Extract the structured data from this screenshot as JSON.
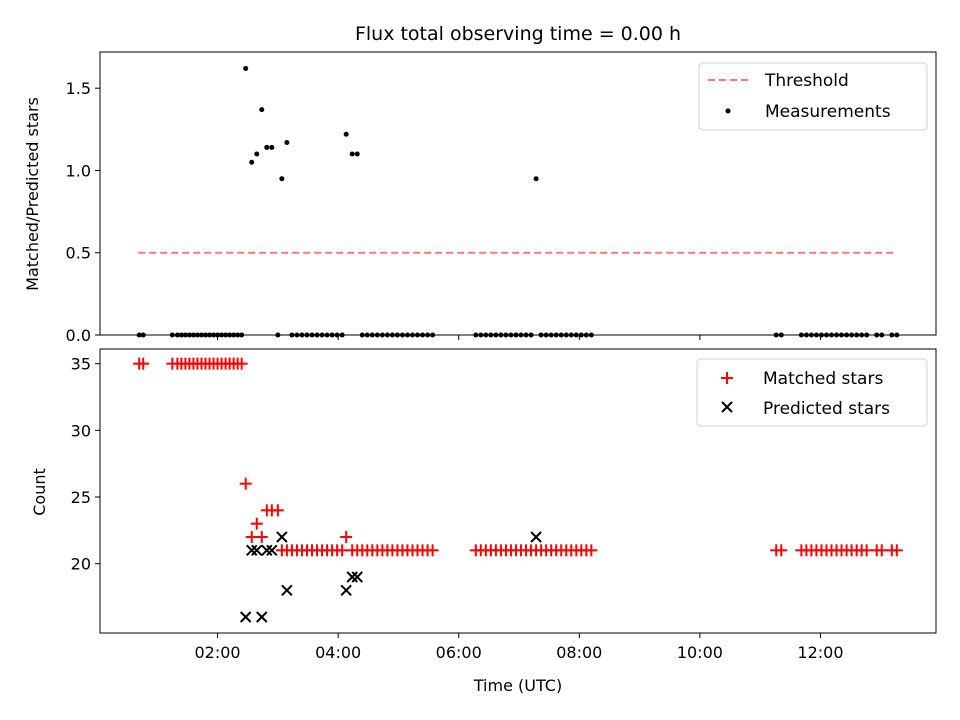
{
  "figure_title": "Flux total observing time = 0.00 h",
  "xlabel": "Time (UTC)",
  "chart_data": [
    {
      "type": "scatter",
      "title": "Flux total observing time = 0.00 h",
      "ylabel": "Matched/Predicted stars",
      "xlim": [
        "00:03",
        "13:55"
      ],
      "ylim": [
        0,
        1.72
      ],
      "yticks": [
        "0.0",
        "0.5",
        "1.0",
        "1.5"
      ],
      "xticks": [
        "02:00",
        "04:00",
        "06:00",
        "08:00",
        "10:00",
        "12:00"
      ],
      "legend_position": "top-right",
      "threshold": {
        "name": "Threshold",
        "value": 0.5,
        "color": "#ff7777",
        "from": "00:41",
        "to": "13:15"
      },
      "series": [
        {
          "name": "Measurements",
          "color": "#000000",
          "points": [
            [
              "00:42",
              0
            ],
            [
              "00:46",
              0
            ],
            [
              "01:15",
              0
            ],
            [
              "01:20",
              0
            ],
            [
              "01:24",
              0
            ],
            [
              "01:28",
              0
            ],
            [
              "01:32",
              0
            ],
            [
              "01:36",
              0
            ],
            [
              "01:40",
              0
            ],
            [
              "01:44",
              0
            ],
            [
              "01:48",
              0
            ],
            [
              "01:52",
              0
            ],
            [
              "01:56",
              0
            ],
            [
              "02:00",
              0
            ],
            [
              "02:04",
              0
            ],
            [
              "02:08",
              0
            ],
            [
              "02:12",
              0
            ],
            [
              "02:16",
              0
            ],
            [
              "02:20",
              0
            ],
            [
              "02:24",
              0
            ],
            [
              "02:28",
              1.62
            ],
            [
              "02:34",
              1.05
            ],
            [
              "02:39",
              1.1
            ],
            [
              "02:44",
              1.37
            ],
            [
              "02:49",
              1.14
            ],
            [
              "02:54",
              1.14
            ],
            [
              "03:00",
              0
            ],
            [
              "03:04",
              0.95
            ],
            [
              "03:09",
              1.17
            ],
            [
              "03:14",
              0
            ],
            [
              "03:19",
              0
            ],
            [
              "03:24",
              0
            ],
            [
              "03:29",
              0
            ],
            [
              "03:34",
              0
            ],
            [
              "03:39",
              0
            ],
            [
              "03:44",
              0
            ],
            [
              "03:49",
              0
            ],
            [
              "03:54",
              0
            ],
            [
              "03:59",
              0
            ],
            [
              "04:04",
              0
            ],
            [
              "04:08",
              1.22
            ],
            [
              "04:14",
              1.1
            ],
            [
              "04:19",
              1.1
            ],
            [
              "04:24",
              0
            ],
            [
              "04:29",
              0
            ],
            [
              "04:34",
              0
            ],
            [
              "04:39",
              0
            ],
            [
              "04:44",
              0
            ],
            [
              "04:49",
              0
            ],
            [
              "04:54",
              0
            ],
            [
              "04:59",
              0
            ],
            [
              "05:04",
              0
            ],
            [
              "05:09",
              0
            ],
            [
              "05:14",
              0
            ],
            [
              "05:19",
              0
            ],
            [
              "05:24",
              0
            ],
            [
              "05:29",
              0
            ],
            [
              "05:34",
              0
            ],
            [
              "06:17",
              0
            ],
            [
              "06:22",
              0
            ],
            [
              "06:27",
              0
            ],
            [
              "06:32",
              0
            ],
            [
              "06:37",
              0
            ],
            [
              "06:42",
              0
            ],
            [
              "06:47",
              0
            ],
            [
              "06:52",
              0
            ],
            [
              "06:57",
              0
            ],
            [
              "07:02",
              0
            ],
            [
              "07:07",
              0
            ],
            [
              "07:12",
              0
            ],
            [
              "07:17",
              0.95
            ],
            [
              "07:22",
              0
            ],
            [
              "07:27",
              0
            ],
            [
              "07:32",
              0
            ],
            [
              "07:37",
              0
            ],
            [
              "07:42",
              0
            ],
            [
              "07:47",
              0
            ],
            [
              "07:52",
              0
            ],
            [
              "07:57",
              0
            ],
            [
              "08:02",
              0
            ],
            [
              "08:07",
              0
            ],
            [
              "08:12",
              0
            ],
            [
              "11:16",
              0
            ],
            [
              "11:21",
              0
            ],
            [
              "11:41",
              0
            ],
            [
              "11:46",
              0
            ],
            [
              "11:51",
              0
            ],
            [
              "11:56",
              0
            ],
            [
              "12:01",
              0
            ],
            [
              "12:06",
              0
            ],
            [
              "12:11",
              0
            ],
            [
              "12:16",
              0
            ],
            [
              "12:21",
              0
            ],
            [
              "12:26",
              0
            ],
            [
              "12:31",
              0
            ],
            [
              "12:36",
              0
            ],
            [
              "12:41",
              0
            ],
            [
              "12:46",
              0
            ],
            [
              "12:56",
              0
            ],
            [
              "13:01",
              0
            ],
            [
              "13:11",
              0
            ],
            [
              "13:16",
              0
            ]
          ]
        }
      ]
    },
    {
      "type": "scatter",
      "ylabel": "Count",
      "xlabel": "Time (UTC)",
      "xlim": [
        "00:03",
        "13:55"
      ],
      "ylim": [
        14.8,
        36.1
      ],
      "yticks": [
        "20",
        "25",
        "30",
        "35"
      ],
      "xticks": [
        "02:00",
        "04:00",
        "06:00",
        "08:00",
        "10:00",
        "12:00"
      ],
      "legend_position": "top-right",
      "series": [
        {
          "name": "Matched stars",
          "marker": "plus",
          "color": "#ff0000",
          "points": [
            [
              "00:42",
              35
            ],
            [
              "00:46",
              35
            ],
            [
              "01:15",
              35
            ],
            [
              "01:20",
              35
            ],
            [
              "01:24",
              35
            ],
            [
              "01:28",
              35
            ],
            [
              "01:32",
              35
            ],
            [
              "01:36",
              35
            ],
            [
              "01:40",
              35
            ],
            [
              "01:44",
              35
            ],
            [
              "01:48",
              35
            ],
            [
              "01:52",
              35
            ],
            [
              "01:56",
              35
            ],
            [
              "02:00",
              35
            ],
            [
              "02:04",
              35
            ],
            [
              "02:08",
              35
            ],
            [
              "02:12",
              35
            ],
            [
              "02:16",
              35
            ],
            [
              "02:20",
              35
            ],
            [
              "02:24",
              35
            ],
            [
              "02:28",
              26
            ],
            [
              "02:34",
              22
            ],
            [
              "02:39",
              23
            ],
            [
              "02:44",
              22
            ],
            [
              "02:49",
              24
            ],
            [
              "02:54",
              24
            ],
            [
              "03:00",
              24
            ],
            [
              "03:04",
              21
            ],
            [
              "03:09",
              21
            ],
            [
              "03:14",
              21
            ],
            [
              "03:19",
              21
            ],
            [
              "03:24",
              21
            ],
            [
              "03:29",
              21
            ],
            [
              "03:34",
              21
            ],
            [
              "03:39",
              21
            ],
            [
              "03:44",
              21
            ],
            [
              "03:49",
              21
            ],
            [
              "03:54",
              21
            ],
            [
              "03:59",
              21
            ],
            [
              "04:04",
              21
            ],
            [
              "04:08",
              22
            ],
            [
              "04:14",
              21
            ],
            [
              "04:19",
              21
            ],
            [
              "04:24",
              21
            ],
            [
              "04:29",
              21
            ],
            [
              "04:34",
              21
            ],
            [
              "04:39",
              21
            ],
            [
              "04:44",
              21
            ],
            [
              "04:49",
              21
            ],
            [
              "04:54",
              21
            ],
            [
              "04:59",
              21
            ],
            [
              "05:04",
              21
            ],
            [
              "05:09",
              21
            ],
            [
              "05:14",
              21
            ],
            [
              "05:19",
              21
            ],
            [
              "05:24",
              21
            ],
            [
              "05:29",
              21
            ],
            [
              "05:34",
              21
            ],
            [
              "06:17",
              21
            ],
            [
              "06:22",
              21
            ],
            [
              "06:27",
              21
            ],
            [
              "06:32",
              21
            ],
            [
              "06:37",
              21
            ],
            [
              "06:42",
              21
            ],
            [
              "06:47",
              21
            ],
            [
              "06:52",
              21
            ],
            [
              "06:57",
              21
            ],
            [
              "07:02",
              21
            ],
            [
              "07:07",
              21
            ],
            [
              "07:12",
              21
            ],
            [
              "07:17",
              21
            ],
            [
              "07:22",
              21
            ],
            [
              "07:27",
              21
            ],
            [
              "07:32",
              21
            ],
            [
              "07:37",
              21
            ],
            [
              "07:42",
              21
            ],
            [
              "07:47",
              21
            ],
            [
              "07:52",
              21
            ],
            [
              "07:57",
              21
            ],
            [
              "08:02",
              21
            ],
            [
              "08:07",
              21
            ],
            [
              "08:12",
              21
            ],
            [
              "11:16",
              21
            ],
            [
              "11:21",
              21
            ],
            [
              "11:41",
              21
            ],
            [
              "11:46",
              21
            ],
            [
              "11:51",
              21
            ],
            [
              "11:56",
              21
            ],
            [
              "12:01",
              21
            ],
            [
              "12:06",
              21
            ],
            [
              "12:11",
              21
            ],
            [
              "12:16",
              21
            ],
            [
              "12:21",
              21
            ],
            [
              "12:26",
              21
            ],
            [
              "12:31",
              21
            ],
            [
              "12:36",
              21
            ],
            [
              "12:41",
              21
            ],
            [
              "12:46",
              21
            ],
            [
              "12:56",
              21
            ],
            [
              "13:01",
              21
            ],
            [
              "13:11",
              21
            ],
            [
              "13:16",
              21
            ]
          ]
        },
        {
          "name": "Predicted stars",
          "marker": "x",
          "color": "#000000",
          "points": [
            [
              "02:28",
              16
            ],
            [
              "02:34",
              21
            ],
            [
              "02:39",
              21
            ],
            [
              "02:44",
              16
            ],
            [
              "02:49",
              21
            ],
            [
              "02:54",
              21
            ],
            [
              "03:04",
              22
            ],
            [
              "03:09",
              18
            ],
            [
              "04:08",
              18
            ],
            [
              "04:14",
              19
            ],
            [
              "04:19",
              19
            ],
            [
              "07:17",
              22
            ]
          ]
        }
      ]
    }
  ]
}
